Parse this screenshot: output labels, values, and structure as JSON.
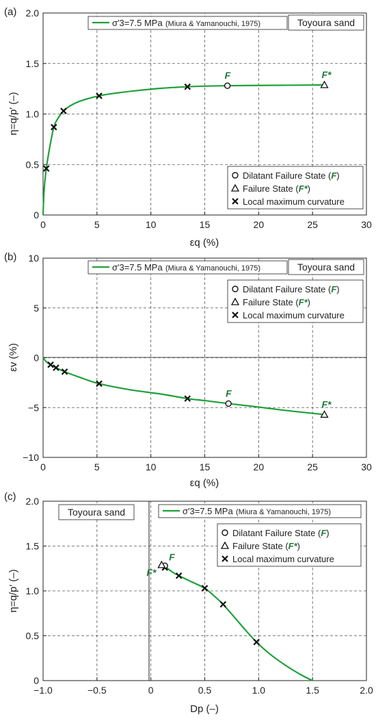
{
  "colors": {
    "curve": "#1fa03a",
    "label_green": "#1f7a3a"
  },
  "common": {
    "legend_series": "σ′3=7.5 MPa",
    "legend_source": "(Miura & Yamanouchi, 1975)",
    "sand": "Toyoura sand",
    "marker_legend": [
      {
        "symbol": "circle",
        "text": "Dilatant Failure State (",
        "italic": "F",
        "close": ")"
      },
      {
        "symbol": "triangle",
        "text": "Failure State (",
        "italic": "F*",
        "close": ")"
      },
      {
        "symbol": "cross",
        "text": "Local maximum curvature",
        "italic": "",
        "close": ""
      }
    ],
    "F_label": "F",
    "Fstar_label": "F*"
  },
  "chart_data": [
    {
      "panel": "(a)",
      "type": "line",
      "xlabel": "εq (%)",
      "ylabel": "η=q/p′ (–)",
      "xlim": [
        0,
        30
      ],
      "ylim": [
        0,
        2.0
      ],
      "xticks": [
        "0",
        "5",
        "10",
        "15",
        "20",
        "25",
        "30"
      ],
      "yticks": [
        "0",
        "0.5",
        "1.0",
        "1.5",
        "2.0"
      ],
      "curve": [
        [
          0,
          0
        ],
        [
          0.1,
          0.25
        ],
        [
          0.3,
          0.46
        ],
        [
          0.6,
          0.66
        ],
        [
          1.0,
          0.87
        ],
        [
          1.4,
          0.96
        ],
        [
          1.9,
          1.03
        ],
        [
          2.5,
          1.08
        ],
        [
          3.5,
          1.13
        ],
        [
          5.2,
          1.18
        ],
        [
          7,
          1.21
        ],
        [
          9,
          1.235
        ],
        [
          11,
          1.255
        ],
        [
          13.4,
          1.27
        ],
        [
          15,
          1.276
        ],
        [
          17,
          1.28
        ],
        [
          20,
          1.283
        ],
        [
          23,
          1.285
        ],
        [
          26.1,
          1.288
        ]
      ],
      "crosses": [
        [
          0.3,
          0.46
        ],
        [
          1.0,
          0.87
        ],
        [
          1.9,
          1.03
        ],
        [
          5.2,
          1.18
        ],
        [
          13.4,
          1.27
        ]
      ],
      "F": [
        17.1,
        1.28
      ],
      "Fstar": [
        26.1,
        1.288
      ]
    },
    {
      "panel": "(b)",
      "type": "line",
      "xlabel": "εq (%)",
      "ylabel": "εv (%)",
      "xlim": [
        0,
        30
      ],
      "ylim": [
        10,
        -10
      ],
      "xticks": [
        "0",
        "5",
        "10",
        "15",
        "20",
        "25",
        "30"
      ],
      "yticks": [
        "−10",
        "−5",
        "0",
        "5",
        "10"
      ],
      "curve": [
        [
          0,
          0
        ],
        [
          0.3,
          0.4
        ],
        [
          0.7,
          0.7
        ],
        [
          1.2,
          1.0
        ],
        [
          2.0,
          1.4
        ],
        [
          3.5,
          2.0
        ],
        [
          5.2,
          2.6
        ],
        [
          8,
          3.2
        ],
        [
          11,
          3.65
        ],
        [
          13.4,
          4.1
        ],
        [
          15,
          4.3
        ],
        [
          17.2,
          4.6
        ],
        [
          20,
          4.95
        ],
        [
          23,
          5.35
        ],
        [
          26.1,
          5.7
        ]
      ],
      "crosses": [
        [
          0.7,
          0.7
        ],
        [
          1.2,
          1.0
        ],
        [
          2.0,
          1.4
        ],
        [
          5.2,
          2.6
        ],
        [
          13.4,
          4.1
        ]
      ],
      "F": [
        17.2,
        4.6
      ],
      "Fstar": [
        26.1,
        5.7
      ]
    },
    {
      "panel": "(c)",
      "type": "line",
      "xlabel": "Dp (–)",
      "ylabel": "η=q/p′ (–)",
      "xlim": [
        -1.0,
        2.0
      ],
      "ylim": [
        0,
        2.0
      ],
      "xticks": [
        "−1.0",
        "−0.5",
        "0",
        "0.5",
        "1.0",
        "1.5",
        "2.0"
      ],
      "yticks": [
        "0",
        "0.5",
        "1.0",
        "1.5",
        "2.0"
      ],
      "curve": [
        [
          0.12,
          1.28
        ],
        [
          0.2,
          1.21
        ],
        [
          0.26,
          1.17
        ],
        [
          0.38,
          1.1
        ],
        [
          0.5,
          1.03
        ],
        [
          0.6,
          0.93
        ],
        [
          0.67,
          0.85
        ],
        [
          0.78,
          0.7
        ],
        [
          0.88,
          0.56
        ],
        [
          0.98,
          0.43
        ],
        [
          1.1,
          0.3
        ],
        [
          1.25,
          0.17
        ],
        [
          1.4,
          0.06
        ],
        [
          1.5,
          0.0
        ]
      ],
      "crosses": [
        [
          0.13,
          1.26
        ],
        [
          0.26,
          1.17
        ],
        [
          0.5,
          1.03
        ],
        [
          0.67,
          0.85
        ],
        [
          0.98,
          0.43
        ]
      ],
      "F": [
        0.13,
        1.28
      ],
      "Fstar": [
        0.1,
        1.29
      ]
    }
  ]
}
